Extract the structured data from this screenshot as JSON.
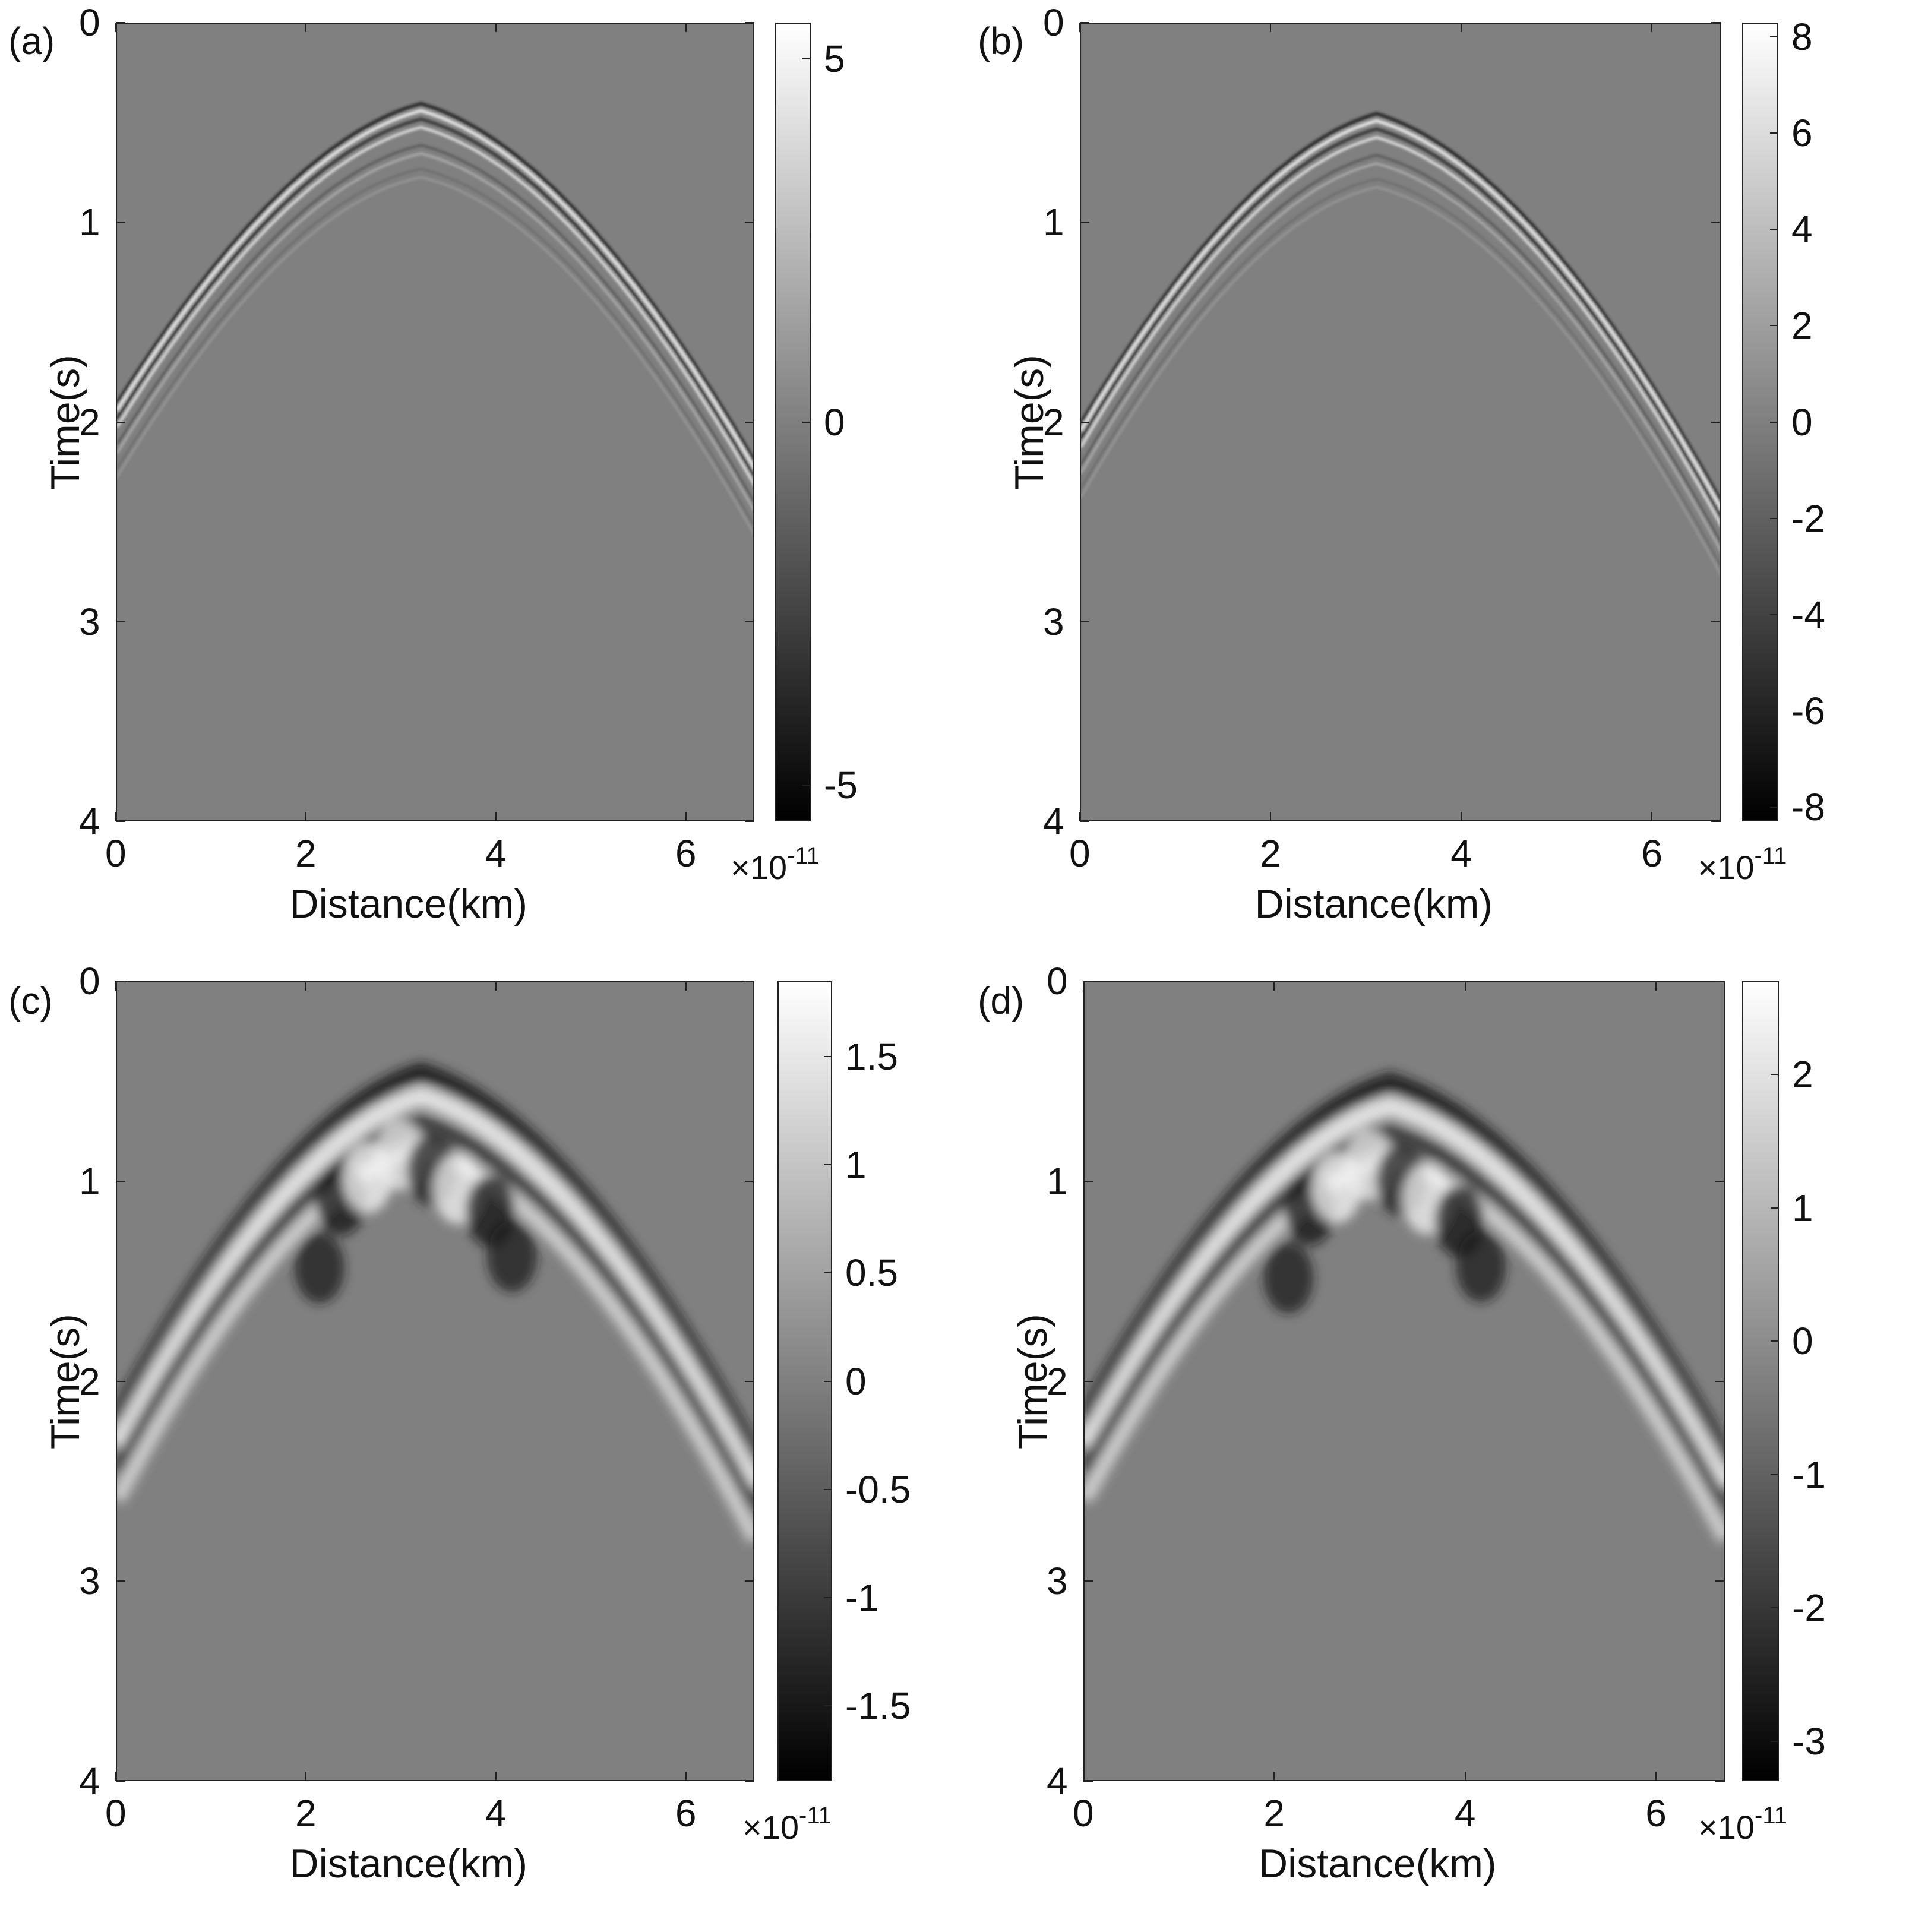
{
  "chart_data": [
    {
      "panel": "(a)",
      "type": "heatmap",
      "colormap": "gray",
      "xlabel": "Distance(km)",
      "ylabel": "Time(s)",
      "xlim": [
        0,
        6.72
      ],
      "ylim": [
        0,
        4
      ],
      "y_reversed": true,
      "x_ticks": [
        "0",
        "2",
        "4",
        "6"
      ],
      "y_ticks": [
        "0",
        "1",
        "2",
        "3",
        "4"
      ],
      "colorbar": {
        "range": [
          -5.5,
          5.5
        ],
        "ticks": [
          "5",
          "0",
          "-5"
        ],
        "tick_values": [
          5,
          0,
          -5
        ],
        "exponent": "×10",
        "exponent_power": "-11"
      },
      "features": {
        "apex_x_km": 3.2,
        "apex_t_s": 0.4,
        "left_edge_t_s": 1.9,
        "right_edge_t_s": 2.2,
        "style": "sharp"
      }
    },
    {
      "panel": "(b)",
      "type": "heatmap",
      "colormap": "gray",
      "xlabel": "Distance(km)",
      "ylabel": "Time(s)",
      "xlim": [
        0,
        6.72
      ],
      "ylim": [
        0,
        4
      ],
      "y_reversed": true,
      "x_ticks": [
        "0",
        "2",
        "4",
        "6"
      ],
      "y_ticks": [
        "0",
        "1",
        "2",
        "3",
        "4"
      ],
      "colorbar": {
        "range": [
          -8.3,
          8.3
        ],
        "ticks": [
          "8",
          "6",
          "4",
          "2",
          "0",
          "-2",
          "-4",
          "-6",
          "-8"
        ],
        "tick_values": [
          8,
          6,
          4,
          2,
          0,
          -2,
          -4,
          -6,
          -8
        ],
        "exponent": "×10",
        "exponent_power": "-11"
      },
      "features": {
        "apex_x_km": 3.1,
        "apex_t_s": 0.45,
        "left_edge_t_s": 2.0,
        "right_edge_t_s": 2.4,
        "style": "sharp"
      }
    },
    {
      "panel": "(c)",
      "type": "heatmap",
      "colormap": "gray",
      "xlabel": "Distance(km)",
      "ylabel": "Time(s)",
      "xlim": [
        0,
        6.72
      ],
      "ylim": [
        0,
        4
      ],
      "y_reversed": true,
      "x_ticks": [
        "0",
        "2",
        "4",
        "6"
      ],
      "y_ticks": [
        "0",
        "1",
        "2",
        "3",
        "4"
      ],
      "colorbar": {
        "range": [
          -1.85,
          1.85
        ],
        "ticks": [
          "1.5",
          "1",
          "0.5",
          "0",
          "-0.5",
          "-1",
          "-1.5"
        ],
        "tick_values": [
          1.5,
          1,
          0.5,
          0,
          -0.5,
          -1,
          -1.5
        ],
        "exponent": "×10",
        "exponent_power": "-11"
      },
      "features": {
        "apex_x_km": 3.2,
        "apex_t_s": 0.45,
        "left_edge_t_s": 2.2,
        "right_edge_t_s": 2.4,
        "style": "smooth"
      }
    },
    {
      "panel": "(d)",
      "type": "heatmap",
      "colormap": "gray",
      "xlabel": "Distance(km)",
      "ylabel": "Time(s)",
      "xlim": [
        0,
        6.72
      ],
      "ylim": [
        0,
        4
      ],
      "y_reversed": true,
      "x_ticks": [
        "0",
        "2",
        "4",
        "6"
      ],
      "y_ticks": [
        "0",
        "1",
        "2",
        "3",
        "4"
      ],
      "colorbar": {
        "range": [
          -3.3,
          2.7
        ],
        "ticks": [
          "2",
          "1",
          "0",
          "-1",
          "-2",
          "-3"
        ],
        "tick_values": [
          2,
          1,
          0,
          -1,
          -2,
          -3
        ],
        "exponent": "×10",
        "exponent_power": "-11"
      },
      "features": {
        "apex_x_km": 3.2,
        "apex_t_s": 0.5,
        "left_edge_t_s": 2.2,
        "right_edge_t_s": 2.4,
        "style": "smooth"
      }
    }
  ]
}
